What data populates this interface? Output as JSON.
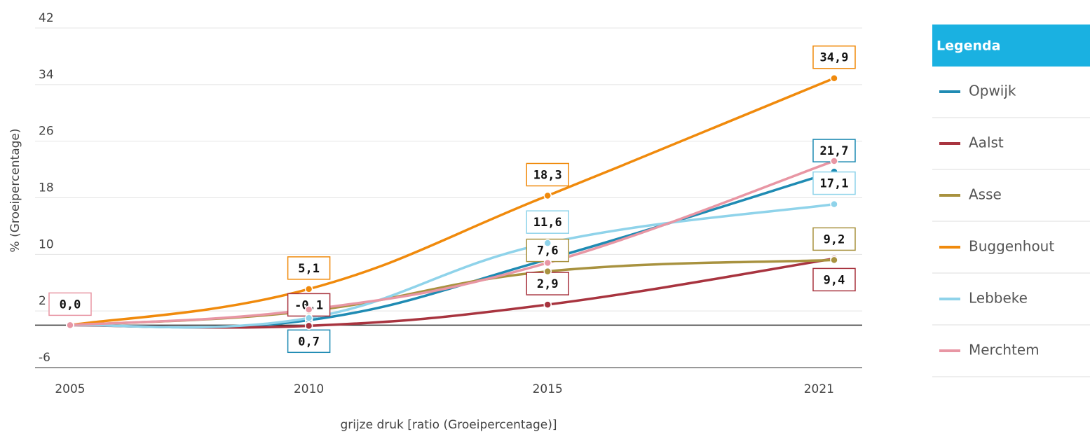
{
  "chart_data": {
    "type": "line",
    "y_label": "% (Groeipercentage)",
    "x_label": "grijze druk [ratio (Groeipercentage)]",
    "legend_title": "Legenda",
    "x": [
      2005,
      2010,
      2015,
      2021
    ],
    "xlim": [
      2005,
      2021
    ],
    "xticks": [
      2005,
      2010,
      2015,
      2021
    ],
    "ylim": [
      -6,
      42
    ],
    "yticks": [
      -6,
      2,
      10,
      18,
      26,
      34,
      42
    ],
    "grid": true,
    "legend": "right",
    "series": [
      {
        "name": "Opwijk",
        "color": "#1f8bb3",
        "values": [
          0,
          0.7,
          9.3,
          21.7
        ],
        "value_labels": [
          null,
          "0,7",
          null,
          "21,7"
        ]
      },
      {
        "name": "Aalst",
        "color": "#a8343f",
        "values": [
          0,
          -0.1,
          2.9,
          9.4
        ],
        "value_labels": [
          null,
          "-0,1",
          "2,9",
          "9,4"
        ]
      },
      {
        "name": "Asse",
        "color": "#a8923f",
        "values": [
          0,
          2.0,
          7.6,
          9.2
        ],
        "value_labels": [
          null,
          null,
          "7,6",
          "9,2"
        ]
      },
      {
        "name": "Buggenhout",
        "color": "#f08a0c",
        "values": [
          0,
          5.1,
          18.3,
          34.9
        ],
        "value_labels": [
          null,
          "5,1",
          "18,3",
          "34,9"
        ]
      },
      {
        "name": "Lebbeke",
        "color": "#8fd3ea",
        "values": [
          0,
          1.0,
          11.6,
          17.1
        ],
        "value_labels": [
          null,
          null,
          "11,6",
          "17,1"
        ]
      },
      {
        "name": "Merchtem",
        "color": "#e896a4",
        "values": [
          0,
          2.2,
          8.8,
          23.2
        ],
        "value_labels": [
          "0,0",
          null,
          null,
          null
        ]
      }
    ]
  }
}
